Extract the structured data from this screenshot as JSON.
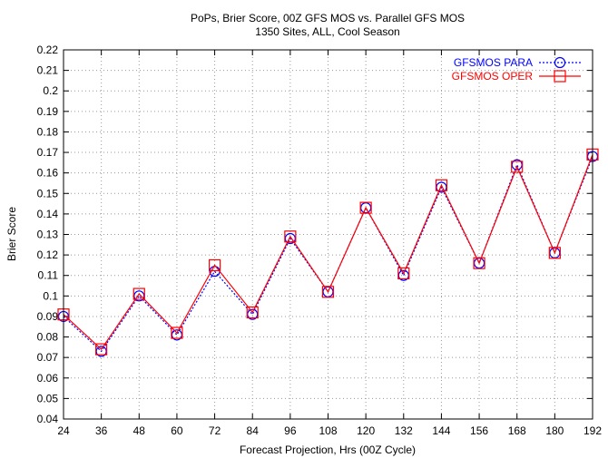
{
  "chart_data": {
    "type": "line",
    "title": "PoPs, Brier Score, 00Z GFS MOS vs. Parallel GFS MOS",
    "subtitle": "1350 Sites, ALL, Cool Season",
    "xlabel": "Forecast Projection, Hrs (00Z Cycle)",
    "ylabel": "Brier Score",
    "x": [
      24,
      36,
      48,
      60,
      72,
      84,
      96,
      108,
      120,
      132,
      144,
      156,
      168,
      180,
      192
    ],
    "x_tick_labels": [
      "24",
      "36",
      "48",
      "60",
      "72",
      "84",
      "96",
      "108",
      "120",
      "132",
      "144",
      "156",
      "168",
      "180",
      "192"
    ],
    "y_tick_labels": [
      "0.04",
      "0.05",
      "0.06",
      "0.07",
      "0.08",
      "0.09",
      "0.1",
      "0.11",
      "0.12",
      "0.13",
      "0.14",
      "0.15",
      "0.16",
      "0.17",
      "0.18",
      "0.19",
      "0.2",
      "0.21",
      "0.22"
    ],
    "ylim": [
      0.04,
      0.22
    ],
    "grid": true,
    "legend_position": "top-right",
    "series": [
      {
        "name": "GFSMOS PARA",
        "color": "#0000ff",
        "line_style": "dotted",
        "marker": "circle",
        "values": [
          0.09,
          0.073,
          0.1,
          0.081,
          0.112,
          0.091,
          0.128,
          0.102,
          0.143,
          0.11,
          0.153,
          0.116,
          0.164,
          0.121,
          0.168
        ]
      },
      {
        "name": "GFSMOS OPER",
        "color": "#ff0000",
        "line_style": "solid",
        "marker": "square",
        "values": [
          0.091,
          0.074,
          0.101,
          0.082,
          0.115,
          0.092,
          0.129,
          0.102,
          0.143,
          0.111,
          0.154,
          0.116,
          0.163,
          0.121,
          0.169
        ]
      }
    ]
  }
}
